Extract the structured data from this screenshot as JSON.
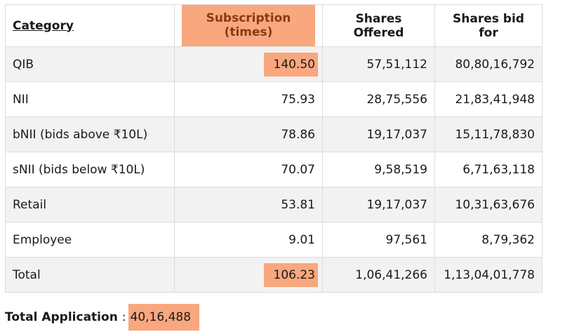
{
  "table": {
    "headers": {
      "category": "Category",
      "subscription": "Subscription (times)",
      "shares_offered": "Shares Offered",
      "shares_bid": "Shares bid for"
    },
    "rows": [
      {
        "category": "QIB",
        "subscription": "140.50",
        "shares_offered": "57,51,112",
        "shares_bid": "80,80,16,792"
      },
      {
        "category": "NII",
        "subscription": "75.93",
        "shares_offered": "28,75,556",
        "shares_bid": "21,83,41,948"
      },
      {
        "category": "bNII (bids above ₹10L)",
        "subscription": "78.86",
        "shares_offered": "19,17,037",
        "shares_bid": "15,11,78,830"
      },
      {
        "category": "sNII (bids below ₹10L)",
        "subscription": "70.07",
        "shares_offered": "9,58,519",
        "shares_bid": "6,71,63,118"
      },
      {
        "category": "Retail",
        "subscription": "53.81",
        "shares_offered": "19,17,037",
        "shares_bid": "10,31,63,676"
      },
      {
        "category": "Employee",
        "subscription": "9.01",
        "shares_offered": "97,561",
        "shares_bid": "8,79,362"
      },
      {
        "category": "Total",
        "subscription": "106.23",
        "shares_offered": "1,06,41,266",
        "shares_bid": "1,13,04,01,778"
      }
    ]
  },
  "total_application": {
    "label": "Total Application",
    "separator": ":",
    "value": "40,16,488"
  },
  "colors": {
    "highlight": "#f9a77e",
    "highlight_text": "#8a3a12",
    "row_shade": "#f2f2f2",
    "border": "#dcdcdc"
  }
}
